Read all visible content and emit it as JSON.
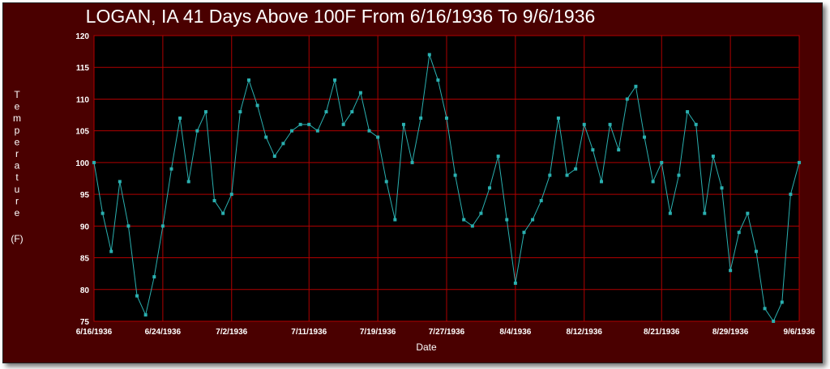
{
  "chart_data": {
    "type": "line",
    "title": "LOGAN, IA  41 Days Above 100F From 6/16/1936 To 9/6/1936",
    "xlabel": "Date",
    "ylabel_letters": [
      "T",
      "e",
      "m",
      "p",
      "e",
      "r",
      "a",
      "t",
      "u",
      "r",
      "e"
    ],
    "ylabel_unit": "(F)",
    "ylim": [
      75,
      120
    ],
    "y_ticks": [
      75,
      80,
      85,
      90,
      95,
      100,
      105,
      110,
      115,
      120
    ],
    "x_start": "6/16/1936",
    "x_end": "9/6/1936",
    "x_ticks": [
      "6/16/1936",
      "6/24/1936",
      "7/2/1936",
      "7/11/1936",
      "7/19/1936",
      "7/27/1936",
      "8/4/1936",
      "8/12/1936",
      "8/21/1936",
      "8/29/1936",
      "9/6/1936"
    ],
    "grid": true,
    "colors": {
      "background": "#4a0000",
      "plot": "#000000",
      "grid": "#b00000",
      "line": "#2ab0b0"
    },
    "series": [
      {
        "x": [
          "6/16/1936",
          "6/17/1936",
          "6/18/1936",
          "6/19/1936",
          "6/20/1936",
          "6/21/1936",
          "6/22/1936",
          "6/23/1936",
          "6/24/1936",
          "6/25/1936",
          "6/26/1936",
          "6/27/1936",
          "6/28/1936",
          "6/29/1936",
          "6/30/1936",
          "7/1/1936",
          "7/2/1936",
          "7/3/1936",
          "7/4/1936",
          "7/5/1936",
          "7/6/1936",
          "7/7/1936",
          "7/8/1936",
          "7/9/1936",
          "7/10/1936",
          "7/11/1936",
          "7/12/1936",
          "7/13/1936",
          "7/14/1936",
          "7/15/1936",
          "7/16/1936",
          "7/17/1936",
          "7/18/1936",
          "7/19/1936",
          "7/20/1936",
          "7/21/1936",
          "7/22/1936",
          "7/23/1936",
          "7/24/1936",
          "7/25/1936",
          "7/26/1936",
          "7/27/1936",
          "7/28/1936",
          "7/29/1936",
          "7/30/1936",
          "7/31/1936",
          "8/1/1936",
          "8/2/1936",
          "8/3/1936",
          "8/4/1936",
          "8/5/1936",
          "8/6/1936",
          "8/7/1936",
          "8/8/1936",
          "8/9/1936",
          "8/10/1936",
          "8/11/1936",
          "8/12/1936",
          "8/13/1936",
          "8/14/1936",
          "8/15/1936",
          "8/16/1936",
          "8/17/1936",
          "8/18/1936",
          "8/19/1936",
          "8/20/1936",
          "8/21/1936",
          "8/22/1936",
          "8/23/1936",
          "8/24/1936",
          "8/25/1936",
          "8/26/1936",
          "8/27/1936",
          "8/28/1936",
          "8/29/1936",
          "8/30/1936",
          "8/31/1936",
          "9/1/1936",
          "9/2/1936",
          "9/3/1936",
          "9/4/1936",
          "9/5/1936",
          "9/6/1936"
        ],
        "values": [
          100,
          92,
          86,
          97,
          90,
          79,
          76,
          82,
          90,
          99,
          107,
          97,
          105,
          108,
          94,
          92,
          95,
          108,
          113,
          109,
          104,
          101,
          103,
          105,
          106,
          106,
          105,
          108,
          113,
          106,
          108,
          111,
          105,
          104,
          97,
          91,
          106,
          100,
          107,
          117,
          113,
          107,
          98,
          91,
          90,
          92,
          96,
          101,
          91,
          81,
          89,
          91,
          94,
          98,
          107,
          98,
          99,
          106,
          102,
          97,
          106,
          102,
          110,
          112,
          104,
          97,
          100,
          92,
          98,
          108,
          106,
          92,
          101,
          96,
          83,
          89,
          92,
          86,
          77,
          75,
          78,
          95,
          100
        ]
      }
    ]
  }
}
